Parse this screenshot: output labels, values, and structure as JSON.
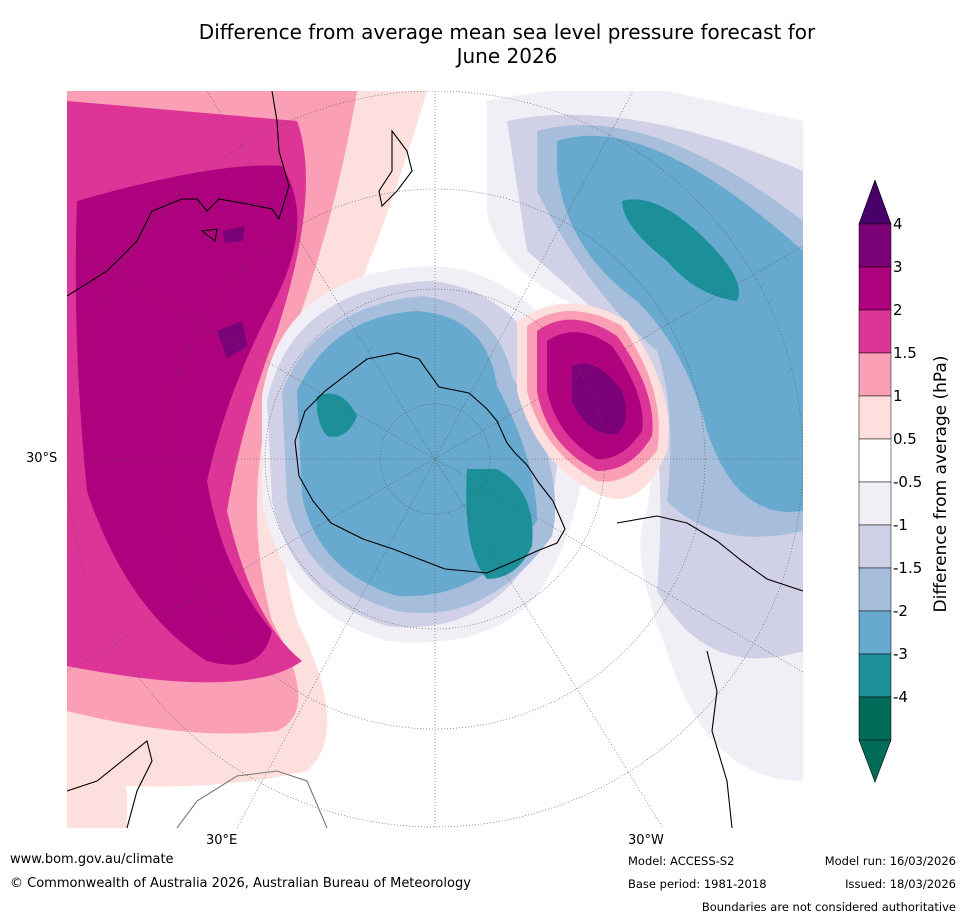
{
  "title_line1": "Difference from average mean sea level pressure forecast for",
  "title_line2": "June 2026",
  "map": {
    "lat_label": "30°S",
    "lon_label_east": "30°E",
    "lon_label_west": "30°W"
  },
  "colorbar": {
    "title": "Difference from average (hPa)",
    "ticks": [
      "4",
      "3",
      "2",
      "1.5",
      "1",
      "0.5",
      "-0.5",
      "-1",
      "-1.5",
      "-2",
      "-3",
      "-4"
    ],
    "colors": [
      "#7a0177",
      "#ae017e",
      "#dd3497",
      "#fa9fb5",
      "#fde0dd",
      "#ffffff",
      "#f2eef5",
      "#d0d1e6",
      "#a6bddb",
      "#67a9cf",
      "#1c9099",
      "#016c59"
    ],
    "over_color": "#49006a",
    "under_color": "#016c59"
  },
  "footer": {
    "url": "www.bom.gov.au/climate",
    "copyright": "© Commonwealth of Australia 2026, Australian Bureau of Meteorology",
    "model": "Model: ACCESS-S2",
    "model_run": "Model run: 16/03/2026",
    "base_period": "Base period: 1981-2018",
    "issued": "Issued: 18/03/2026",
    "disclaimer": "Boundaries are not considered authoritative"
  }
}
